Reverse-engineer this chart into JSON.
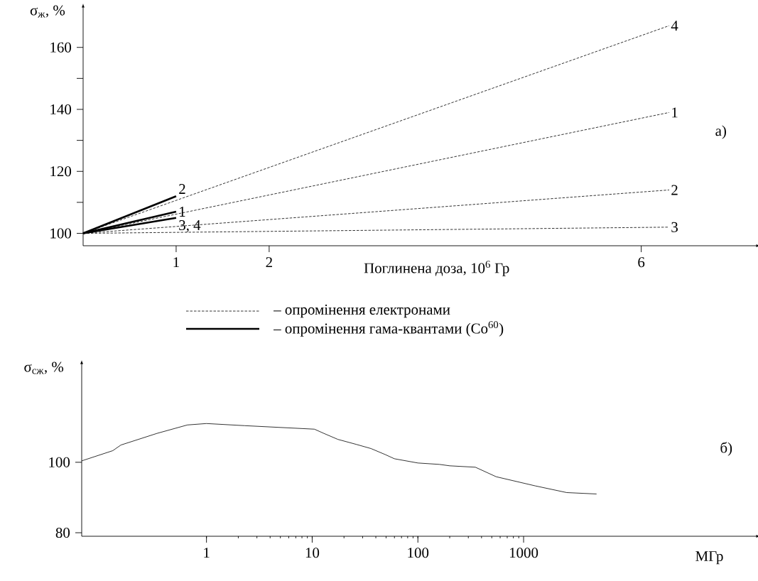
{
  "chart_data": [
    {
      "type": "line",
      "xlabel": "Поглинена доза, 10$^{6}$ Гр",
      "ylabel": "σ$_{ж}$, %",
      "xlim": [
        0,
        7.24
      ],
      "ylim": [
        96,
        173
      ],
      "xticks": [
        1,
        2,
        6
      ],
      "yticks": [
        100,
        {
          "value": 110,
          "label": null
        },
        120,
        {
          "value": 130,
          "label": null
        },
        140,
        {
          "value": 150,
          "label": null
        },
        160
      ],
      "annotations": [
        "а)",
        "– опромінення електронами",
        "– опромінення гама-квантами (Co$^{60}$)"
      ],
      "series": [
        {
          "name": "4",
          "color": "#000000",
          "line_style": "dashed",
          "x": [
            0,
            6.3
          ],
          "values": [
            100,
            167
          ]
        },
        {
          "name": "1",
          "color": "#000000",
          "line_style": "dashed",
          "x": [
            0,
            6.3
          ],
          "values": [
            100,
            139
          ]
        },
        {
          "name": "2",
          "color": "#000000",
          "line_style": "dashed",
          "x": [
            0,
            6.3
          ],
          "values": [
            100,
            114
          ]
        },
        {
          "name": "3",
          "color": "#000000",
          "line_style": "dashed",
          "x": [
            0,
            6.3
          ],
          "values": [
            100,
            102
          ]
        },
        {
          "name": "2",
          "color": "#000000",
          "line_style": "solid",
          "x": [
            0,
            1
          ],
          "values": [
            100,
            112
          ]
        },
        {
          "name": "1",
          "color": "#000000",
          "line_style": "solid",
          "x": [
            0,
            1
          ],
          "values": [
            100,
            107
          ]
        },
        {
          "name": "3, 4",
          "color": "#000000",
          "line_style": "solid",
          "x": [
            0,
            1
          ],
          "values": [
            100,
            105
          ]
        }
      ]
    },
    {
      "type": "line",
      "log": "x",
      "xlabel": "МГр",
      "ylabel": "σ$_{сж}$, %",
      "xlim": [
        0.066,
        160000
      ],
      "ylim": [
        79,
        128
      ],
      "xticks": [
        1,
        10,
        100,
        1000
      ],
      "yticks": [
        80,
        100
      ],
      "annotations": [
        "б)"
      ],
      "series": [
        {
          "color": "#000000",
          "line_style": "solid",
          "x": [
            0.066,
            0.13,
            0.155,
            0.34,
            0.66,
            1.0,
            2.3,
            10.5,
            12.9,
            17.5,
            26,
            36,
            49,
            60,
            100,
            160,
            200,
            350,
            550,
            1290,
            2560,
            4900
          ],
          "values": [
            100.4,
            103.3,
            104.9,
            108.2,
            110.6,
            111,
            110.4,
            109.4,
            108.2,
            106.5,
            105.1,
            103.9,
            102.2,
            101,
            99.8,
            99.4,
            99,
            98.6,
            95.9,
            93.3,
            91.4,
            91
          ]
        }
      ]
    }
  ]
}
